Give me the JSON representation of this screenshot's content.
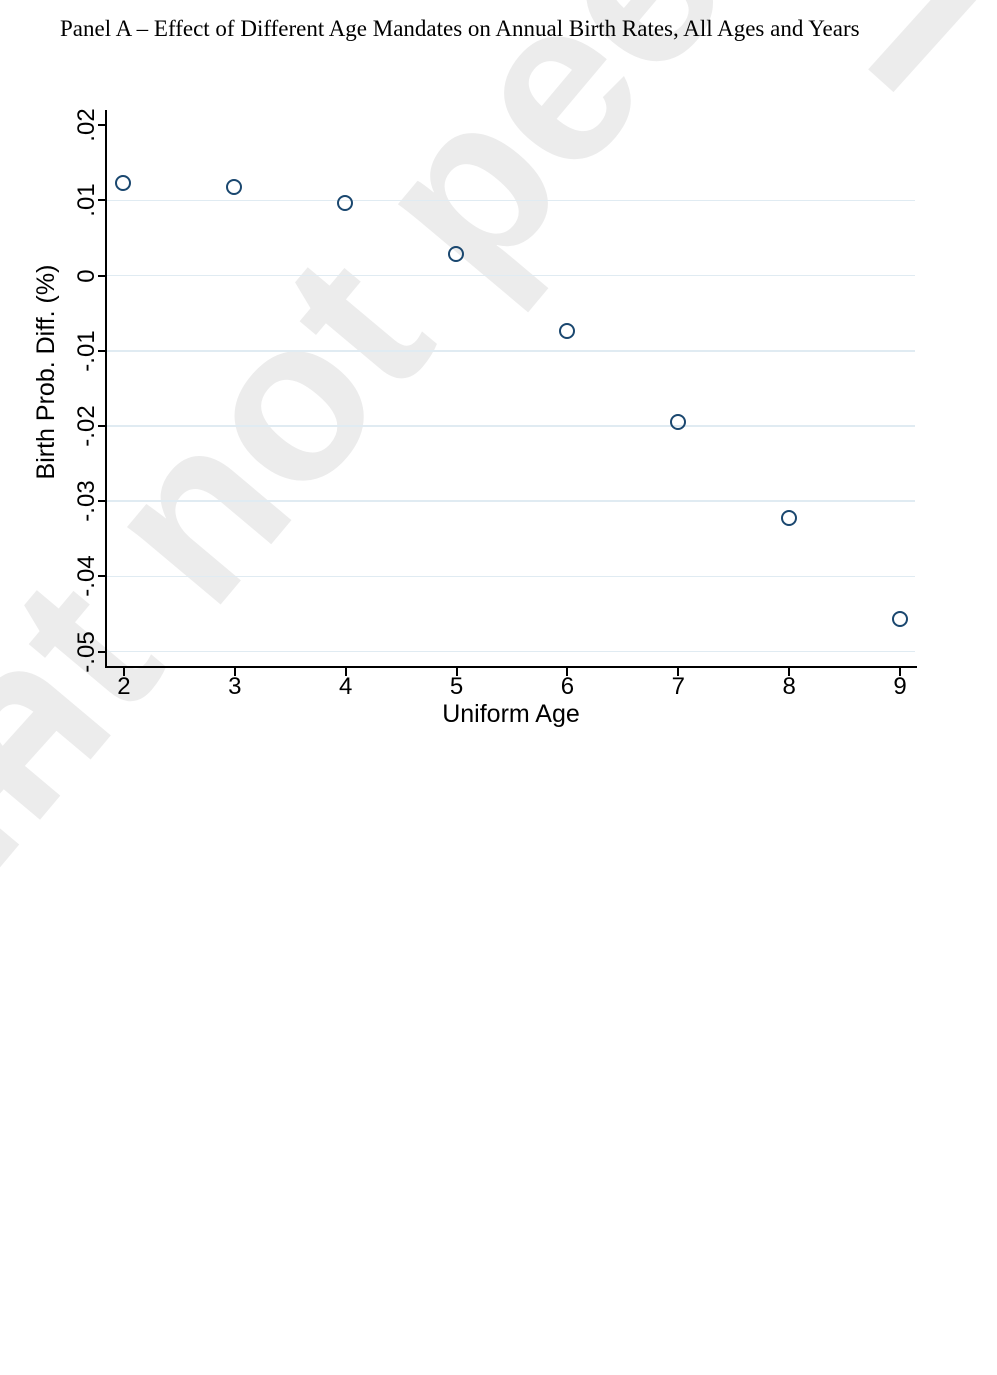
{
  "page": {
    "type": "preprint-figure"
  },
  "watermark": {
    "text": "Preprint not peer reviewed",
    "color": "#ececec"
  },
  "chart_data": {
    "type": "scatter",
    "title": "Panel A – Effect of Different Age Mandates on Annual Birth Rates, All Ages and Years",
    "xlabel": "Uniform Age",
    "ylabel": "Birth Prob. Diff. (%)",
    "x": [
      2,
      3,
      4,
      5,
      6,
      7,
      8,
      9
    ],
    "y": [
      0.0122,
      0.0117,
      0.0096,
      0.0028,
      -0.0074,
      -0.0196,
      -0.0323,
      -0.0457
    ],
    "xlim": [
      1.847,
      9.135
    ],
    "ylim": [
      -0.0519,
      0.022
    ],
    "xticks": {
      "values": [
        2,
        3,
        4,
        5,
        6,
        7,
        8,
        9
      ],
      "labels": [
        "2",
        "3",
        "4",
        "5",
        "6",
        "7",
        "8",
        "9"
      ]
    },
    "yticks": {
      "values": [
        0.02,
        0.01,
        0,
        -0.01,
        -0.02,
        -0.03,
        -0.04,
        -0.05
      ],
      "labels": [
        ".02",
        ".01",
        "0",
        "-.01",
        "-.02",
        "-.03",
        "-.04",
        "-.05"
      ]
    },
    "ygrid_values": [
      0.01,
      0,
      -0.01,
      -0.02,
      -0.03,
      -0.04,
      -0.05
    ],
    "grid": "horizontal-only",
    "legend": "none",
    "marker": {
      "shape": "circle-hollow",
      "color": "#1a476f"
    },
    "gridline_color": "#e0ebf2",
    "axis_color": "#000000"
  }
}
